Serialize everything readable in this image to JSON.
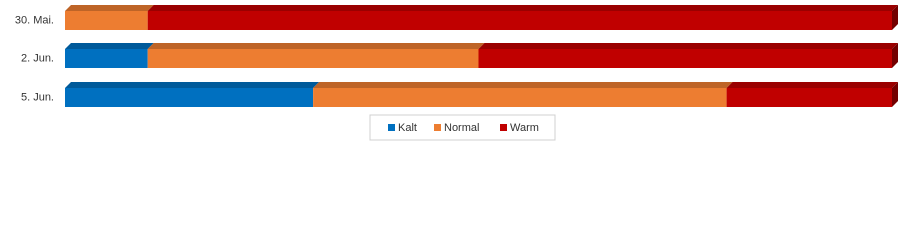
{
  "chart_data": {
    "type": "stacked-bar-horizontal",
    "categories": [
      "30. Mai.",
      "2. Jun.",
      "5. Jun."
    ],
    "series": [
      {
        "name": "Kalt",
        "color": "#0070c0",
        "values": [
          0,
          10,
          30
        ]
      },
      {
        "name": "Normal",
        "color": "#ed7d31",
        "values": [
          10,
          40,
          50
        ]
      },
      {
        "name": "Warm",
        "color": "#c00000",
        "values": [
          90,
          50,
          20
        ]
      }
    ]
  }
}
